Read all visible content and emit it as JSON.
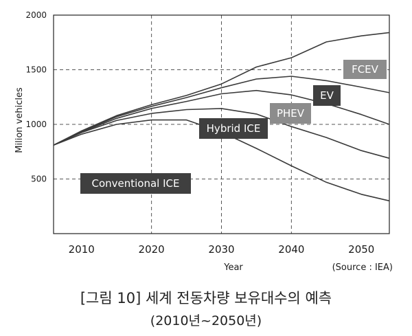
{
  "chart_data": {
    "type": "line",
    "ylabel": "Milion vehicles",
    "xlabel": "Year",
    "source": "(Source : IEA)",
    "xlim": [
      2006,
      2054
    ],
    "ylim": [
      0,
      2000
    ],
    "xticks": [
      2010,
      2020,
      2030,
      2040,
      2050
    ],
    "yticks": [
      500,
      1000,
      1500,
      2000
    ],
    "grid": true,
    "series": [
      {
        "name": "FCEV",
        "x": [
          2006,
          2010,
          2015,
          2020,
          2025,
          2030,
          2035,
          2040,
          2045,
          2050,
          2054
        ],
        "values": [
          810,
          940,
          1080,
          1180,
          1265,
          1370,
          1525,
          1610,
          1755,
          1810,
          1840
        ]
      },
      {
        "name": "EV",
        "x": [
          2006,
          2010,
          2015,
          2020,
          2025,
          2030,
          2035,
          2040,
          2045,
          2050,
          2054
        ],
        "values": [
          810,
          935,
          1070,
          1165,
          1245,
          1335,
          1415,
          1440,
          1400,
          1340,
          1290
        ]
      },
      {
        "name": "PHEV",
        "x": [
          2006,
          2010,
          2015,
          2020,
          2025,
          2030,
          2035,
          2040,
          2045,
          2050,
          2054
        ],
        "values": [
          810,
          930,
          1055,
          1145,
          1210,
          1280,
          1310,
          1270,
          1190,
          1090,
          1000
        ]
      },
      {
        "name": "Hybrid ICE",
        "x": [
          2006,
          2010,
          2015,
          2020,
          2025,
          2030,
          2035,
          2040,
          2045,
          2050,
          2054
        ],
        "values": [
          810,
          925,
          1035,
          1100,
          1135,
          1145,
          1095,
          980,
          880,
          760,
          690
        ]
      },
      {
        "name": "Conventional ICE",
        "x": [
          2006,
          2010,
          2015,
          2020,
          2025,
          2030,
          2035,
          2040,
          2045,
          2050,
          2054
        ],
        "values": [
          810,
          910,
          1000,
          1040,
          1040,
          930,
          780,
          620,
          470,
          360,
          300
        ]
      }
    ],
    "annotations": [
      {
        "text": "FCEV",
        "style": "light"
      },
      {
        "text": "EV",
        "style": "dark"
      },
      {
        "text": "PHEV",
        "style": "light"
      },
      {
        "text": "Hybrid ICE",
        "style": "dark"
      },
      {
        "text": "Conventional ICE",
        "style": "dark"
      }
    ],
    "colors": {
      "lines": "#3a3a3a",
      "grid": "#555555",
      "dark_box": "#3f3f3f",
      "light_box": "#8c8c8c"
    }
  },
  "caption": {
    "line1": "[그림 10] 세계 전동차량 보유대수의 예측",
    "line2": "(2010년~2050년)"
  }
}
